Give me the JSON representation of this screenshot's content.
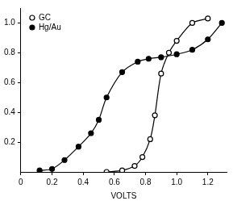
{
  "chart_data": {
    "type": "line",
    "x_label": "VOLTS",
    "xlim": [
      0,
      1.32
    ],
    "xticks": [
      0,
      0.2,
      0.4,
      0.6,
      0.8,
      {
        "value": 1,
        "label": "1.0"
      },
      1.2
    ],
    "ylim": [
      0,
      1.1
    ],
    "yticks": [
      0.2,
      0.4,
      0.6,
      0.8,
      {
        "value": 1,
        "label": "1.0"
      }
    ],
    "grid": false,
    "legend": "upper left",
    "series": [
      {
        "name": "GC",
        "color": "#000000",
        "marker": "open_circle",
        "line_style": "solid",
        "x": [
          0.55,
          0.65,
          0.73,
          0.78,
          0.83,
          0.86,
          0.9,
          0.95,
          1.0,
          1.1,
          1.2
        ],
        "values": [
          0.0,
          0.01,
          0.04,
          0.1,
          0.22,
          0.38,
          0.66,
          0.8,
          0.88,
          1.0,
          1.03
        ]
      },
      {
        "name": "Hg/Au",
        "color": "#000000",
        "marker": "filled_circle",
        "line_style": "solid",
        "x": [
          0.12,
          0.2,
          0.28,
          0.37,
          0.45,
          0.5,
          0.55,
          0.65,
          0.75,
          0.82,
          0.9,
          1.0,
          1.1,
          1.2,
          1.29
        ],
        "values": [
          0.01,
          0.02,
          0.08,
          0.17,
          0.26,
          0.35,
          0.5,
          0.67,
          0.74,
          0.76,
          0.77,
          0.79,
          0.82,
          0.89,
          1.0
        ]
      }
    ]
  }
}
